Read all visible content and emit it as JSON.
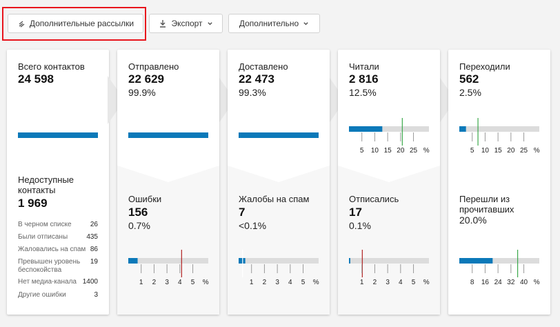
{
  "toolbar": {
    "extra_mailings": "Дополнительные рассылки",
    "export": "Экспорт",
    "more": "Дополнительно"
  },
  "total": {
    "label": "Всего контактов",
    "value": "24 598",
    "bar_fraction": 1.0
  },
  "unreachable": {
    "label": "Недоступные контакты",
    "value": "1 969",
    "rows": [
      {
        "label": "В черном списке",
        "value": "26"
      },
      {
        "label": "Были отписаны",
        "value": "435"
      },
      {
        "label": "Жаловались на спам",
        "value": "86"
      },
      {
        "label": "Превышен уровень беспокойства",
        "value": "19"
      },
      {
        "label": "Нет медиа-канала",
        "value": "1400"
      },
      {
        "label": "Другие ошибки",
        "value": "3"
      }
    ]
  },
  "sent": {
    "label": "Отправлено",
    "value": "22 629",
    "percent": "99.9%",
    "bar_fraction": 1.0
  },
  "delivered": {
    "label": "Доставлено",
    "value": "22 473",
    "percent": "99.3%",
    "bar_fraction": 1.0
  },
  "read": {
    "label": "Читали",
    "value": "2 816",
    "percent": "12.5%",
    "gauge": {
      "value": 12.5,
      "max": 30,
      "benchmark": 20,
      "ticks": [
        "5",
        "10",
        "15",
        "20",
        "25",
        "%"
      ],
      "marker_color": "#3aa84a"
    }
  },
  "clicked": {
    "label": "Переходили",
    "value": "562",
    "percent": "2.5%",
    "gauge": {
      "value": 2.5,
      "max": 30,
      "benchmark": 7,
      "ticks": [
        "5",
        "10",
        "15",
        "20",
        "25",
        "%"
      ],
      "marker_color": "#3aa84a"
    }
  },
  "errors": {
    "label": "Ошибки",
    "value": "156",
    "percent": "0.7%",
    "gauge": {
      "value": 0.7,
      "max": 6,
      "benchmark": 4,
      "ticks": [
        "1",
        "2",
        "3",
        "4",
        "5",
        "%"
      ],
      "marker_color": "#b22222"
    }
  },
  "spam": {
    "label": "Жалобы на спам",
    "value": "7",
    "percent": "<0.1%",
    "gauge": {
      "value": 0.05,
      "max": 0.6,
      "benchmark": 0.03,
      "ticks": [
        "1",
        "2",
        "3",
        "4",
        "5",
        "%"
      ],
      "marker_color": "#ffffff"
    }
  },
  "unsubscribed": {
    "label": "Отписались",
    "value": "17",
    "percent": "0.1%",
    "gauge": {
      "value": 0.1,
      "max": 6,
      "benchmark": 1,
      "ticks": [
        "1",
        "2",
        "3",
        "4",
        "5",
        "%"
      ],
      "marker_color": "#b22222"
    }
  },
  "clicked_of_readers": {
    "label": "Перешли из прочитавших",
    "percent": "20.0%",
    "gauge": {
      "value": 20,
      "max": 48,
      "benchmark": 35,
      "ticks": [
        "8",
        "16",
        "24",
        "32",
        "40",
        "%"
      ],
      "marker_color": "#3aa84a"
    }
  }
}
